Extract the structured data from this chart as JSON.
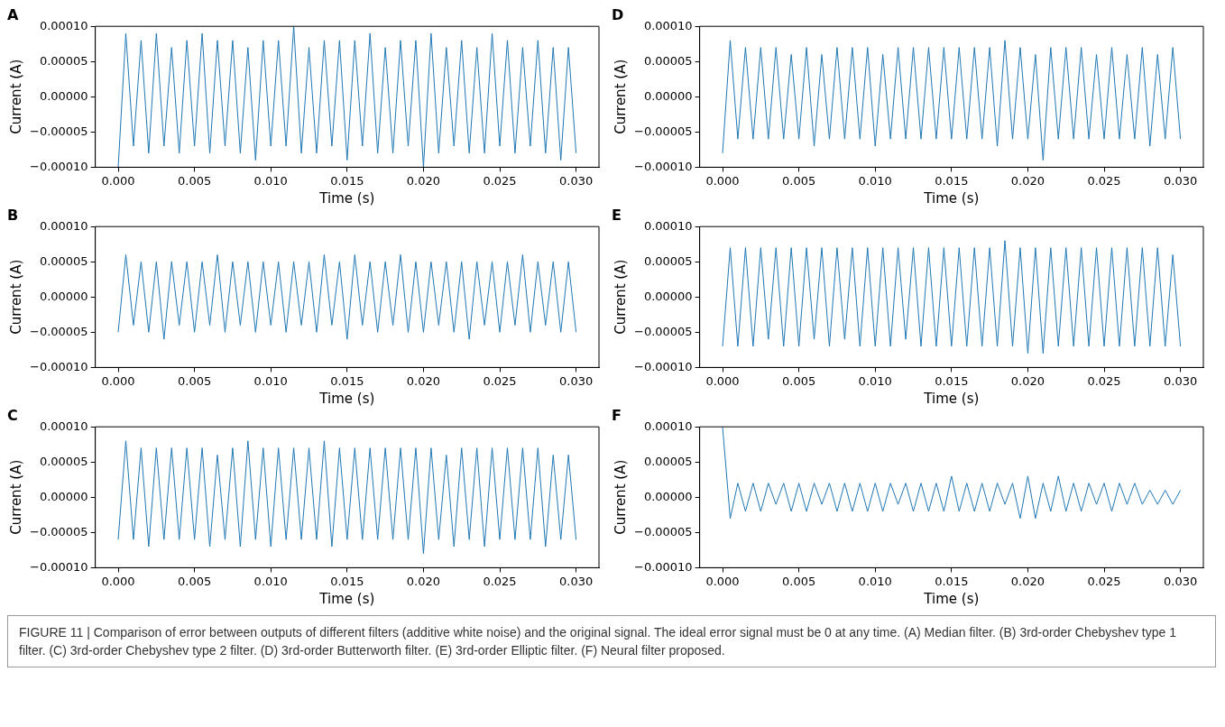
{
  "chart_data": [
    {
      "type": "line",
      "title": "A",
      "xlabel": "Time (s)",
      "ylabel": "Current (A)",
      "xlim": [
        -0.0015,
        0.0315
      ],
      "ylim": [
        -0.0001,
        0.0001
      ],
      "grid": false,
      "legend": false,
      "marker": "none",
      "line_style": "solid",
      "xticks": [
        {
          "value": 0,
          "label": "0.000"
        },
        {
          "value": 0.005,
          "label": "0.005"
        },
        {
          "value": 0.01,
          "label": "0.010"
        },
        {
          "value": 0.015,
          "label": "0.015"
        },
        {
          "value": 0.02,
          "label": "0.020"
        },
        {
          "value": 0.025,
          "label": "0.025"
        },
        {
          "value": 0.03,
          "label": "0.030"
        }
      ],
      "yticks": [
        {
          "value": -0.0001,
          "label": "−0.00010"
        },
        {
          "value": -5e-05,
          "label": "−0.00005"
        },
        {
          "value": 0,
          "label": "0.00000"
        },
        {
          "value": 5e-05,
          "label": "0.00005"
        },
        {
          "value": 0.0001,
          "label": "0.00010"
        }
      ],
      "x": [
        0,
        0.0005,
        0.001,
        0.0015,
        0.002,
        0.0025,
        0.003,
        0.0035,
        0.004,
        0.0045,
        0.005,
        0.0055,
        0.006,
        0.0065,
        0.007,
        0.0075,
        0.008,
        0.0085,
        0.009,
        0.0095,
        0.01,
        0.0105,
        0.011,
        0.0115,
        0.012,
        0.0125,
        0.013,
        0.0135,
        0.014,
        0.0145,
        0.015,
        0.0155,
        0.016,
        0.0165,
        0.017,
        0.0175,
        0.018,
        0.0185,
        0.019,
        0.0195,
        0.02,
        0.0205,
        0.021,
        0.0215,
        0.022,
        0.0225,
        0.023,
        0.0235,
        0.024,
        0.0245,
        0.025,
        0.0255,
        0.026,
        0.0265,
        0.027,
        0.0275,
        0.028,
        0.0285,
        0.029,
        0.0295,
        0.03
      ],
      "series": [
        {
          "color": "#1f77b4",
          "values": [
            -0.0001,
            9e-05,
            -7e-05,
            8e-05,
            -8e-05,
            9e-05,
            -7e-05,
            7e-05,
            -8e-05,
            8e-05,
            -7e-05,
            9e-05,
            -8e-05,
            8e-05,
            -7e-05,
            8e-05,
            -8e-05,
            7e-05,
            -9e-05,
            8e-05,
            -7e-05,
            8e-05,
            -7e-05,
            0.0001,
            -8e-05,
            7e-05,
            -8e-05,
            8e-05,
            -7e-05,
            8e-05,
            -9e-05,
            8e-05,
            -7e-05,
            9e-05,
            -8e-05,
            7e-05,
            -8e-05,
            8e-05,
            -7e-05,
            8e-05,
            -0.0001,
            9e-05,
            -8e-05,
            7e-05,
            -7e-05,
            8e-05,
            -8e-05,
            7e-05,
            -8e-05,
            9e-05,
            -7e-05,
            8e-05,
            -8e-05,
            7e-05,
            -7e-05,
            8e-05,
            -8e-05,
            7e-05,
            -9e-05,
            7e-05,
            -8e-05
          ]
        }
      ],
      "annotations": [
        "FIGURE 11 | Comparison of error between outputs of different filters (additive white noise) and the original signal. The ideal error signal must be 0 at any time. (A) Median filter. (B) 3rd-order Chebyshev type 1 filter. (C) 3rd-order Chebyshev type 2 filter. (D) 3rd-order Butterworth filter. (E) 3rd-order Elliptic filter. (F) Neural filter proposed."
      ]
    },
    {
      "type": "line",
      "title": "D",
      "xlabel": "Time (s)",
      "ylabel": "Current (A)",
      "xlim": [
        -0.0015,
        0.0315
      ],
      "ylim": [
        -0.0001,
        0.0001
      ],
      "grid": false,
      "legend": false,
      "marker": "none",
      "line_style": "solid",
      "xticks": [
        {
          "value": 0,
          "label": "0.000"
        },
        {
          "value": 0.005,
          "label": "0.005"
        },
        {
          "value": 0.01,
          "label": "0.010"
        },
        {
          "value": 0.015,
          "label": "0.015"
        },
        {
          "value": 0.02,
          "label": "0.020"
        },
        {
          "value": 0.025,
          "label": "0.025"
        },
        {
          "value": 0.03,
          "label": "0.030"
        }
      ],
      "yticks": [
        {
          "value": -0.0001,
          "label": "−0.00010"
        },
        {
          "value": -5e-05,
          "label": "−0.00005"
        },
        {
          "value": 0,
          "label": "0.00000"
        },
        {
          "value": 5e-05,
          "label": "0.00005"
        },
        {
          "value": 0.0001,
          "label": "0.00010"
        }
      ],
      "x": [
        0,
        0.0005,
        0.001,
        0.0015,
        0.002,
        0.0025,
        0.003,
        0.0035,
        0.004,
        0.0045,
        0.005,
        0.0055,
        0.006,
        0.0065,
        0.007,
        0.0075,
        0.008,
        0.0085,
        0.009,
        0.0095,
        0.01,
        0.0105,
        0.011,
        0.0115,
        0.012,
        0.0125,
        0.013,
        0.0135,
        0.014,
        0.0145,
        0.015,
        0.0155,
        0.016,
        0.0165,
        0.017,
        0.0175,
        0.018,
        0.0185,
        0.019,
        0.0195,
        0.02,
        0.0205,
        0.021,
        0.0215,
        0.022,
        0.0225,
        0.023,
        0.0235,
        0.024,
        0.0245,
        0.025,
        0.0255,
        0.026,
        0.0265,
        0.027,
        0.0275,
        0.028,
        0.0285,
        0.029,
        0.0295,
        0.03
      ],
      "series": [
        {
          "color": "#1f77b4",
          "values": [
            -8e-05,
            8e-05,
            -6e-05,
            7e-05,
            -6e-05,
            7e-05,
            -6e-05,
            7e-05,
            -6e-05,
            6e-05,
            -6e-05,
            7e-05,
            -7e-05,
            6e-05,
            -6e-05,
            7e-05,
            -6e-05,
            7e-05,
            -6e-05,
            7e-05,
            -7e-05,
            6e-05,
            -6e-05,
            7e-05,
            -6e-05,
            7e-05,
            -6e-05,
            7e-05,
            -6e-05,
            7e-05,
            -6e-05,
            7e-05,
            -6e-05,
            7e-05,
            -6e-05,
            7e-05,
            -7e-05,
            8e-05,
            -6e-05,
            7e-05,
            -6e-05,
            6e-05,
            -9e-05,
            7e-05,
            -6e-05,
            7e-05,
            -6e-05,
            7e-05,
            -6e-05,
            6e-05,
            -6e-05,
            7e-05,
            -6e-05,
            6e-05,
            -6e-05,
            7e-05,
            -7e-05,
            6e-05,
            -6e-05,
            7e-05,
            -6e-05
          ]
        }
      ]
    },
    {
      "type": "line",
      "title": "B",
      "xlabel": "Time (s)",
      "ylabel": "Current (A)",
      "xlim": [
        -0.0015,
        0.0315
      ],
      "ylim": [
        -0.0001,
        0.0001
      ],
      "grid": false,
      "legend": false,
      "marker": "none",
      "line_style": "solid",
      "xticks": [
        {
          "value": 0,
          "label": "0.000"
        },
        {
          "value": 0.005,
          "label": "0.005"
        },
        {
          "value": 0.01,
          "label": "0.010"
        },
        {
          "value": 0.015,
          "label": "0.015"
        },
        {
          "value": 0.02,
          "label": "0.020"
        },
        {
          "value": 0.025,
          "label": "0.025"
        },
        {
          "value": 0.03,
          "label": "0.030"
        }
      ],
      "yticks": [
        {
          "value": -0.0001,
          "label": "−0.00010"
        },
        {
          "value": -5e-05,
          "label": "−0.00005"
        },
        {
          "value": 0,
          "label": "0.00000"
        },
        {
          "value": 5e-05,
          "label": "0.00005"
        },
        {
          "value": 0.0001,
          "label": "0.00010"
        }
      ],
      "x": [
        0,
        0.0005,
        0.001,
        0.0015,
        0.002,
        0.0025,
        0.003,
        0.0035,
        0.004,
        0.0045,
        0.005,
        0.0055,
        0.006,
        0.0065,
        0.007,
        0.0075,
        0.008,
        0.0085,
        0.009,
        0.0095,
        0.01,
        0.0105,
        0.011,
        0.0115,
        0.012,
        0.0125,
        0.013,
        0.0135,
        0.014,
        0.0145,
        0.015,
        0.0155,
        0.016,
        0.0165,
        0.017,
        0.0175,
        0.018,
        0.0185,
        0.019,
        0.0195,
        0.02,
        0.0205,
        0.021,
        0.0215,
        0.022,
        0.0225,
        0.023,
        0.0235,
        0.024,
        0.0245,
        0.025,
        0.0255,
        0.026,
        0.0265,
        0.027,
        0.0275,
        0.028,
        0.0285,
        0.029,
        0.0295,
        0.03
      ],
      "series": [
        {
          "color": "#1f77b4",
          "values": [
            -5e-05,
            6e-05,
            -4e-05,
            5e-05,
            -5e-05,
            5e-05,
            -6e-05,
            5e-05,
            -4e-05,
            5e-05,
            -5e-05,
            5e-05,
            -4e-05,
            6e-05,
            -5e-05,
            5e-05,
            -4e-05,
            5e-05,
            -5e-05,
            5e-05,
            -4e-05,
            5e-05,
            -5e-05,
            5e-05,
            -4e-05,
            5e-05,
            -5e-05,
            6e-05,
            -4e-05,
            5e-05,
            -6e-05,
            6e-05,
            -4e-05,
            5e-05,
            -5e-05,
            5e-05,
            -4e-05,
            6e-05,
            -5e-05,
            5e-05,
            -5e-05,
            5e-05,
            -4e-05,
            5e-05,
            -5e-05,
            5e-05,
            -6e-05,
            5e-05,
            -4e-05,
            5e-05,
            -5e-05,
            5e-05,
            -4e-05,
            6e-05,
            -5e-05,
            5e-05,
            -4e-05,
            5e-05,
            -5e-05,
            5e-05,
            -5e-05
          ]
        }
      ]
    },
    {
      "type": "line",
      "title": "E",
      "xlabel": "Time (s)",
      "ylabel": "Current (A)",
      "xlim": [
        -0.0015,
        0.0315
      ],
      "ylim": [
        -0.0001,
        0.0001
      ],
      "grid": false,
      "legend": false,
      "marker": "none",
      "line_style": "solid",
      "xticks": [
        {
          "value": 0,
          "label": "0.000"
        },
        {
          "value": 0.005,
          "label": "0.005"
        },
        {
          "value": 0.01,
          "label": "0.010"
        },
        {
          "value": 0.015,
          "label": "0.015"
        },
        {
          "value": 0.02,
          "label": "0.020"
        },
        {
          "value": 0.025,
          "label": "0.025"
        },
        {
          "value": 0.03,
          "label": "0.030"
        }
      ],
      "yticks": [
        {
          "value": -0.0001,
          "label": "−0.00010"
        },
        {
          "value": -5e-05,
          "label": "−0.00005"
        },
        {
          "value": 0,
          "label": "0.00000"
        },
        {
          "value": 5e-05,
          "label": "0.00005"
        },
        {
          "value": 0.0001,
          "label": "0.00010"
        }
      ],
      "x": [
        0,
        0.0005,
        0.001,
        0.0015,
        0.002,
        0.0025,
        0.003,
        0.0035,
        0.004,
        0.0045,
        0.005,
        0.0055,
        0.006,
        0.0065,
        0.007,
        0.0075,
        0.008,
        0.0085,
        0.009,
        0.0095,
        0.01,
        0.0105,
        0.011,
        0.0115,
        0.012,
        0.0125,
        0.013,
        0.0135,
        0.014,
        0.0145,
        0.015,
        0.0155,
        0.016,
        0.0165,
        0.017,
        0.0175,
        0.018,
        0.0185,
        0.019,
        0.0195,
        0.02,
        0.0205,
        0.021,
        0.0215,
        0.022,
        0.0225,
        0.023,
        0.0235,
        0.024,
        0.0245,
        0.025,
        0.0255,
        0.026,
        0.0265,
        0.027,
        0.0275,
        0.028,
        0.0285,
        0.029,
        0.0295,
        0.03
      ],
      "series": [
        {
          "color": "#1f77b4",
          "values": [
            -7e-05,
            7e-05,
            -7e-05,
            7e-05,
            -7e-05,
            7e-05,
            -6e-05,
            7e-05,
            -7e-05,
            7e-05,
            -7e-05,
            7e-05,
            -6e-05,
            7e-05,
            -7e-05,
            7e-05,
            -6e-05,
            7e-05,
            -7e-05,
            7e-05,
            -7e-05,
            7e-05,
            -7e-05,
            7e-05,
            -6e-05,
            7e-05,
            -7e-05,
            7e-05,
            -7e-05,
            7e-05,
            -7e-05,
            7e-05,
            -7e-05,
            7e-05,
            -7e-05,
            7e-05,
            -7e-05,
            8e-05,
            -7e-05,
            7e-05,
            -8e-05,
            7e-05,
            -8e-05,
            7e-05,
            -7e-05,
            7e-05,
            -7e-05,
            7e-05,
            -7e-05,
            7e-05,
            -7e-05,
            7e-05,
            -7e-05,
            7e-05,
            -7e-05,
            7e-05,
            -7e-05,
            7e-05,
            -7e-05,
            6e-05,
            -7e-05
          ]
        }
      ]
    },
    {
      "type": "line",
      "title": "C",
      "xlabel": "Time (s)",
      "ylabel": "Current (A)",
      "xlim": [
        -0.0015,
        0.0315
      ],
      "ylim": [
        -0.0001,
        0.0001
      ],
      "grid": false,
      "legend": false,
      "marker": "none",
      "line_style": "solid",
      "xticks": [
        {
          "value": 0,
          "label": "0.000"
        },
        {
          "value": 0.005,
          "label": "0.005"
        },
        {
          "value": 0.01,
          "label": "0.010"
        },
        {
          "value": 0.015,
          "label": "0.015"
        },
        {
          "value": 0.02,
          "label": "0.020"
        },
        {
          "value": 0.025,
          "label": "0.025"
        },
        {
          "value": 0.03,
          "label": "0.030"
        }
      ],
      "yticks": [
        {
          "value": -0.0001,
          "label": "−0.00010"
        },
        {
          "value": -5e-05,
          "label": "−0.00005"
        },
        {
          "value": 0,
          "label": "0.00000"
        },
        {
          "value": 5e-05,
          "label": "0.00005"
        },
        {
          "value": 0.0001,
          "label": "0.00010"
        }
      ],
      "x": [
        0,
        0.0005,
        0.001,
        0.0015,
        0.002,
        0.0025,
        0.003,
        0.0035,
        0.004,
        0.0045,
        0.005,
        0.0055,
        0.006,
        0.0065,
        0.007,
        0.0075,
        0.008,
        0.0085,
        0.009,
        0.0095,
        0.01,
        0.0105,
        0.011,
        0.0115,
        0.012,
        0.0125,
        0.013,
        0.0135,
        0.014,
        0.0145,
        0.015,
        0.0155,
        0.016,
        0.0165,
        0.017,
        0.0175,
        0.018,
        0.0185,
        0.019,
        0.0195,
        0.02,
        0.0205,
        0.021,
        0.0215,
        0.022,
        0.0225,
        0.023,
        0.0235,
        0.024,
        0.0245,
        0.025,
        0.0255,
        0.026,
        0.0265,
        0.027,
        0.0275,
        0.028,
        0.0285,
        0.029,
        0.0295,
        0.03
      ],
      "series": [
        {
          "color": "#1f77b4",
          "values": [
            -6e-05,
            8e-05,
            -6e-05,
            7e-05,
            -7e-05,
            7e-05,
            -6e-05,
            7e-05,
            -6e-05,
            7e-05,
            -6e-05,
            7e-05,
            -7e-05,
            6e-05,
            -6e-05,
            7e-05,
            -7e-05,
            8e-05,
            -6e-05,
            7e-05,
            -7e-05,
            7e-05,
            -6e-05,
            7e-05,
            -6e-05,
            7e-05,
            -6e-05,
            8e-05,
            -7e-05,
            7e-05,
            -6e-05,
            7e-05,
            -6e-05,
            7e-05,
            -6e-05,
            7e-05,
            -6e-05,
            7e-05,
            -6e-05,
            7e-05,
            -8e-05,
            7e-05,
            -6e-05,
            6e-05,
            -7e-05,
            7e-05,
            -6e-05,
            7e-05,
            -7e-05,
            7e-05,
            -6e-05,
            7e-05,
            -6e-05,
            7e-05,
            -6e-05,
            7e-05,
            -7e-05,
            6e-05,
            -6e-05,
            6e-05,
            -6e-05
          ]
        }
      ]
    },
    {
      "type": "line",
      "title": "F",
      "xlabel": "Time (s)",
      "ylabel": "Current (A)",
      "xlim": [
        -0.0015,
        0.0315
      ],
      "ylim": [
        -0.0001,
        0.0001
      ],
      "grid": false,
      "legend": false,
      "marker": "none",
      "line_style": "solid",
      "xticks": [
        {
          "value": 0,
          "label": "0.000"
        },
        {
          "value": 0.005,
          "label": "0.005"
        },
        {
          "value": 0.01,
          "label": "0.010"
        },
        {
          "value": 0.015,
          "label": "0.015"
        },
        {
          "value": 0.02,
          "label": "0.020"
        },
        {
          "value": 0.025,
          "label": "0.025"
        },
        {
          "value": 0.03,
          "label": "0.030"
        }
      ],
      "yticks": [
        {
          "value": -0.0001,
          "label": "−0.00010"
        },
        {
          "value": -5e-05,
          "label": "−0.00005"
        },
        {
          "value": 0,
          "label": "0.00000"
        },
        {
          "value": 5e-05,
          "label": "0.00005"
        },
        {
          "value": 0.0001,
          "label": "0.00010"
        }
      ],
      "x": [
        0,
        0.0005,
        0.001,
        0.0015,
        0.002,
        0.0025,
        0.003,
        0.0035,
        0.004,
        0.0045,
        0.005,
        0.0055,
        0.006,
        0.0065,
        0.007,
        0.0075,
        0.008,
        0.0085,
        0.009,
        0.0095,
        0.01,
        0.0105,
        0.011,
        0.0115,
        0.012,
        0.0125,
        0.013,
        0.0135,
        0.014,
        0.0145,
        0.015,
        0.0155,
        0.016,
        0.0165,
        0.017,
        0.0175,
        0.018,
        0.0185,
        0.019,
        0.0195,
        0.02,
        0.0205,
        0.021,
        0.0215,
        0.022,
        0.0225,
        0.023,
        0.0235,
        0.024,
        0.0245,
        0.025,
        0.0255,
        0.026,
        0.0265,
        0.027,
        0.0275,
        0.028,
        0.0285,
        0.029,
        0.0295,
        0.03
      ],
      "series": [
        {
          "color": "#1f77b4",
          "values": [
            0.0001,
            -3e-05,
            2e-05,
            -2e-05,
            2e-05,
            -2e-05,
            2e-05,
            -1e-05,
            2e-05,
            -2e-05,
            2e-05,
            -2e-05,
            2e-05,
            -1e-05,
            2e-05,
            -2e-05,
            2e-05,
            -2e-05,
            2e-05,
            -2e-05,
            2e-05,
            -2e-05,
            2e-05,
            -1e-05,
            2e-05,
            -2e-05,
            2e-05,
            -2e-05,
            2e-05,
            -2e-05,
            3e-05,
            -2e-05,
            2e-05,
            -2e-05,
            2e-05,
            -2e-05,
            2e-05,
            -1e-05,
            2e-05,
            -3e-05,
            3e-05,
            -3e-05,
            2e-05,
            -2e-05,
            3e-05,
            -2e-05,
            2e-05,
            -2e-05,
            2e-05,
            -1e-05,
            2e-05,
            -2e-05,
            2e-05,
            -1e-05,
            2e-05,
            -1e-05,
            1e-05,
            -1e-05,
            1e-05,
            -1e-05,
            1e-05
          ]
        }
      ]
    }
  ]
}
